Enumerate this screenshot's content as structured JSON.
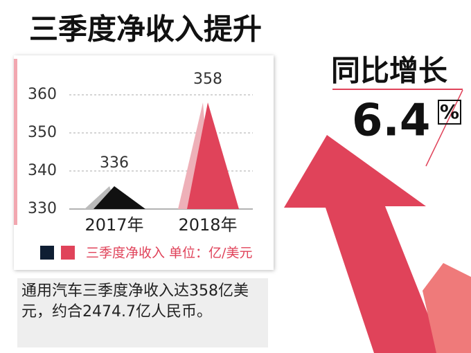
{
  "chart_data": {
    "type": "peak",
    "title": "三季度净收入提升",
    "categories": [
      "2017年",
      "2018年"
    ],
    "values": [
      336,
      358
    ],
    "colors": [
      "#111111",
      "#e0435a"
    ],
    "legend_colors": [
      "#0f1e33",
      "#e0435a"
    ],
    "legend_label": "三季度净收入 单位：亿/美元",
    "ylim": [
      330,
      360
    ],
    "yticks": [
      330,
      340,
      350,
      360
    ],
    "grid": true,
    "annotations": [
      "同比增长",
      "6.4",
      "%"
    ],
    "caption": "通用汽车三季度净收入达358亿美元，约合2474.7亿人民币。"
  }
}
